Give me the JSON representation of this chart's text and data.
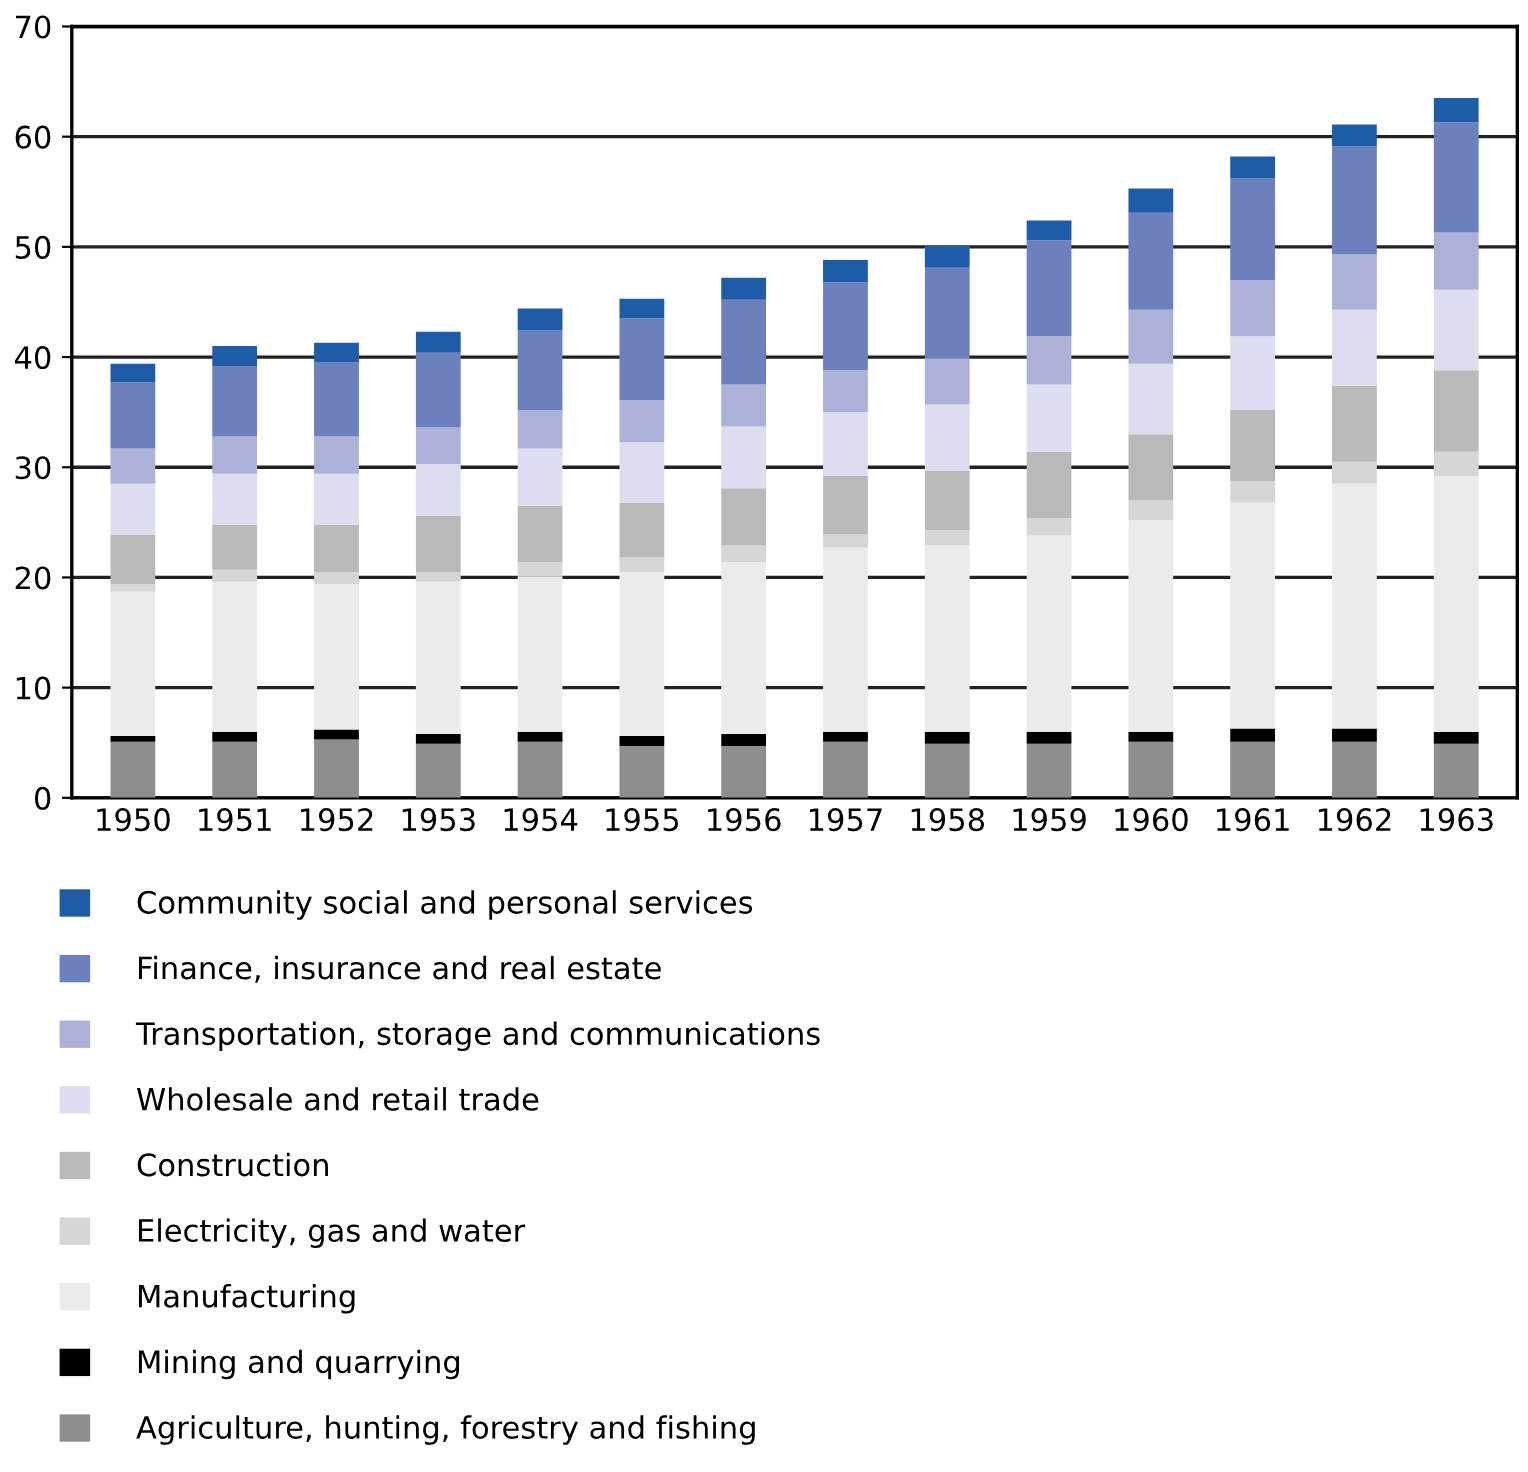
{
  "chart_data": {
    "type": "bar",
    "stacked": true,
    "categories": [
      "1950",
      "1951",
      "1952",
      "1953",
      "1954",
      "1955",
      "1956",
      "1957",
      "1958",
      "1959",
      "1960",
      "1961",
      "1962",
      "1963"
    ],
    "series": [
      {
        "name": "Agriculture, hunting, forestry and fishing",
        "color": "#8e8e8e",
        "values": [
          5.1,
          5.1,
          5.3,
          4.9,
          5.1,
          4.7,
          4.7,
          5.1,
          4.9,
          4.9,
          5.1,
          5.1,
          5.1,
          4.9
        ]
      },
      {
        "name": "Mining and quarrying",
        "color": "#000000",
        "values": [
          0.5,
          0.9,
          0.9,
          0.9,
          0.9,
          0.9,
          1.1,
          0.9,
          1.1,
          1.1,
          0.9,
          1.2,
          1.2,
          1.1
        ]
      },
      {
        "name": "Manufacturing",
        "color": "#ebebeb",
        "values": [
          13.1,
          13.6,
          13.2,
          13.8,
          14.1,
          14.9,
          15.6,
          16.7,
          16.9,
          17.8,
          19.2,
          20.5,
          22.2,
          23.2
        ]
      },
      {
        "name": "Electricity, gas and water",
        "color": "#d6d6d6",
        "values": [
          0.7,
          1.1,
          1.1,
          0.9,
          1.3,
          1.3,
          1.5,
          1.2,
          1.4,
          1.6,
          1.8,
          1.9,
          2.0,
          2.2
        ]
      },
      {
        "name": "Construction",
        "color": "#b9b9b9",
        "values": [
          4.5,
          4.1,
          4.3,
          5.1,
          5.1,
          5.0,
          5.2,
          5.3,
          5.4,
          6.0,
          6.0,
          6.5,
          6.9,
          7.4
        ]
      },
      {
        "name": "Wholesale and retail trade",
        "color": "#dcddef",
        "values": [
          4.6,
          4.6,
          4.6,
          4.7,
          5.2,
          5.5,
          5.6,
          5.8,
          6.0,
          6.1,
          6.4,
          6.7,
          6.9,
          7.3
        ]
      },
      {
        "name": "Transportation, storage and communications",
        "color": "#acb2d7",
        "values": [
          3.2,
          3.4,
          3.4,
          3.3,
          3.5,
          3.8,
          3.8,
          3.8,
          4.2,
          4.4,
          4.9,
          5.1,
          5.0,
          5.2
        ]
      },
      {
        "name": "Finance, insurance and real estate",
        "color": "#6b80bc",
        "values": [
          6.0,
          6.4,
          6.7,
          6.8,
          7.2,
          7.4,
          7.7,
          8.0,
          8.2,
          8.7,
          8.8,
          9.2,
          9.8,
          10.0
        ]
      },
      {
        "name": "Community social and personal services",
        "color": "#1f5ca8",
        "values": [
          1.7,
          1.8,
          1.8,
          1.9,
          2.0,
          1.8,
          2.0,
          2.0,
          2.0,
          1.8,
          2.2,
          2.0,
          2.0,
          2.2
        ]
      }
    ],
    "ylim": [
      0,
      70
    ],
    "yticks": [
      0,
      10,
      20,
      30,
      40,
      50,
      60,
      70
    ],
    "grid": "y",
    "legend": "bottom"
  }
}
